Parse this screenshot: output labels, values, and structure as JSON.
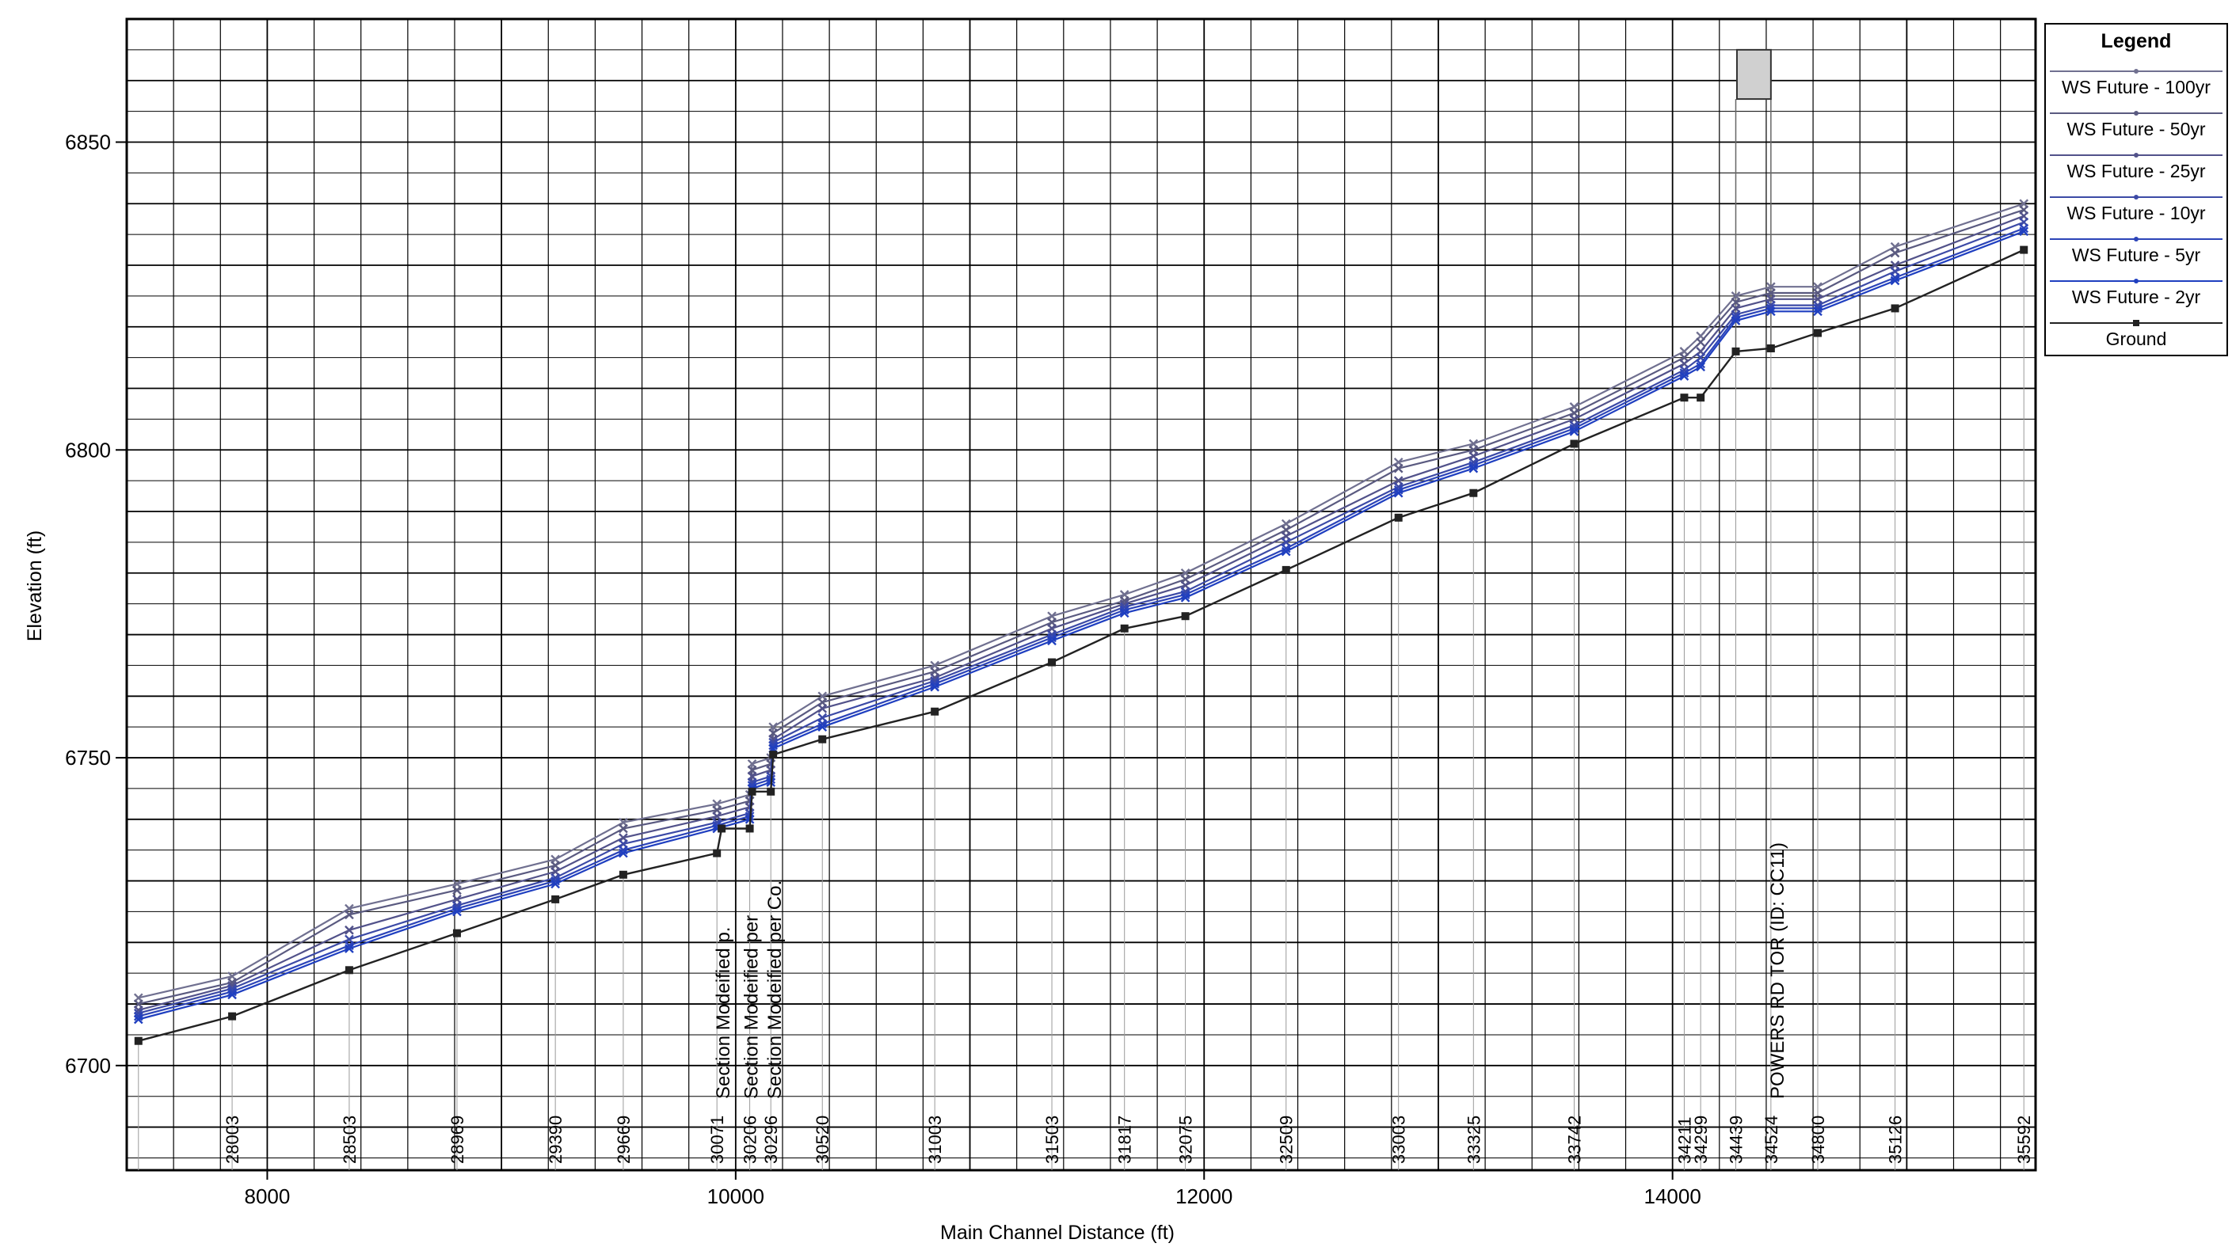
{
  "chart_data": {
    "type": "line",
    "xlabel": "Main Channel Distance (ft)",
    "ylabel": "Elevation (ft)",
    "xlim": [
      7400,
      15550
    ],
    "ylim": [
      6683,
      6870
    ],
    "x_ticks": [
      8000,
      10000,
      12000,
      14000
    ],
    "y_ticks": [
      6700,
      6750,
      6800,
      6850
    ],
    "grid": true,
    "legend_position": "right-outside",
    "legend_title": "Legend",
    "stations": [
      {
        "x": 7450,
        "label": ""
      },
      {
        "x": 7850,
        "label": "28003"
      },
      {
        "x": 8350,
        "label": "28503"
      },
      {
        "x": 8810,
        "label": "28969"
      },
      {
        "x": 9230,
        "label": "29390"
      },
      {
        "x": 9520,
        "label": "29669"
      },
      {
        "x": 9920,
        "label": "30071"
      },
      {
        "x": 10060,
        "label": "30206"
      },
      {
        "x": 10150,
        "label": "30296"
      },
      {
        "x": 10370,
        "label": "30520"
      },
      {
        "x": 10850,
        "label": "31003"
      },
      {
        "x": 11350,
        "label": "31503"
      },
      {
        "x": 11660,
        "label": "31817"
      },
      {
        "x": 11920,
        "label": "32075"
      },
      {
        "x": 12350,
        "label": "32509"
      },
      {
        "x": 12830,
        "label": "33003"
      },
      {
        "x": 13150,
        "label": "33325"
      },
      {
        "x": 13580,
        "label": "33742"
      },
      {
        "x": 14050,
        "label": "34211"
      },
      {
        "x": 14120,
        "label": "34299"
      },
      {
        "x": 14270,
        "label": "34439"
      },
      {
        "x": 14420,
        "label": "34524"
      },
      {
        "x": 14620,
        "label": "34800"
      },
      {
        "x": 14950,
        "label": "35126"
      },
      {
        "x": 15500,
        "label": "35592"
      }
    ],
    "annotations": [
      {
        "x": 9940,
        "text": "Section Modeified p."
      },
      {
        "x": 10060,
        "text": "Section Modeified per"
      },
      {
        "x": 10160,
        "text": "Section Modeified per Co."
      },
      {
        "x": 14440,
        "text": "POWERS RD TOR (ID: CC11)"
      }
    ],
    "series": [
      {
        "name": "WS Future - 100yr",
        "color": "#707090",
        "x": [
          7450,
          7850,
          8350,
          8810,
          9230,
          9520,
          9920,
          10060,
          10070,
          10150,
          10160,
          10370,
          10850,
          11350,
          11660,
          11920,
          12350,
          12830,
          13150,
          13580,
          14050,
          14120,
          14270,
          14420,
          14620,
          14950,
          15500
        ],
        "y": [
          6711,
          6714.5,
          6725.5,
          6729.5,
          6733.5,
          6739.5,
          6742.5,
          6744,
          6749,
          6750,
          6755,
          6760,
          6765,
          6773,
          6776.5,
          6780,
          6788,
          6798,
          6801,
          6807,
          6816,
          6818.5,
          6825,
          6826.5,
          6826.5,
          6833,
          6840
        ]
      },
      {
        "name": "WS Future - 50yr",
        "color": "#5a5a80",
        "x": [
          7450,
          7850,
          8350,
          8810,
          9230,
          9520,
          9920,
          10060,
          10070,
          10150,
          10160,
          10370,
          10850,
          11350,
          11660,
          11920,
          12350,
          12830,
          13150,
          13580,
          14050,
          14120,
          14270,
          14420,
          14620,
          14950,
          15500
        ],
        "y": [
          6710,
          6713.5,
          6724.5,
          6728.5,
          6732.5,
          6738.5,
          6741.5,
          6743,
          6748,
          6749,
          6754,
          6759,
          6764,
          6772,
          6775.5,
          6779,
          6787,
          6797,
          6800,
          6806,
          6815,
          6817.5,
          6824,
          6825.5,
          6825.5,
          6832,
          6839
        ]
      },
      {
        "name": "WS Future - 25yr",
        "color": "#52528a",
        "x": [
          7450,
          7850,
          8350,
          8810,
          9230,
          9520,
          9920,
          10060,
          10070,
          10150,
          10160,
          10370,
          10850,
          11350,
          11660,
          11920,
          12350,
          12830,
          13150,
          13580,
          14050,
          14120,
          14270,
          14420,
          14620,
          14950,
          15500
        ],
        "y": [
          6709,
          6713,
          6722,
          6727,
          6731.5,
          6737,
          6740.5,
          6742,
          6747,
          6748,
          6753,
          6758,
          6763,
          6771,
          6775,
          6778,
          6786,
          6795,
          6799,
          6805,
          6814,
          6816,
          6823,
          6824.5,
          6824.5,
          6830,
          6838
        ]
      },
      {
        "name": "WS Future - 10yr",
        "color": "#3c4aa6",
        "x": [
          7450,
          7850,
          8350,
          8810,
          9230,
          9520,
          9920,
          10060,
          10070,
          10150,
          10160,
          10370,
          10850,
          11350,
          11660,
          11920,
          12350,
          12830,
          13150,
          13580,
          14050,
          14120,
          14270,
          14420,
          14620,
          14950,
          15500
        ],
        "y": [
          6708.5,
          6712.5,
          6720.5,
          6726,
          6730.5,
          6736,
          6739.5,
          6741,
          6746,
          6747,
          6752.5,
          6756.5,
          6762.5,
          6770,
          6774.5,
          6777,
          6785,
          6794,
          6798,
          6804,
          6813,
          6815,
          6822,
          6823.5,
          6823.5,
          6829,
          6837
        ]
      },
      {
        "name": "WS Future - 5yr",
        "color": "#2c44b8",
        "x": [
          7450,
          7850,
          8350,
          8810,
          9230,
          9520,
          9920,
          10060,
          10070,
          10150,
          10160,
          10370,
          10850,
          11350,
          11660,
          11920,
          12350,
          12830,
          13150,
          13580,
          14050,
          14120,
          14270,
          14420,
          14620,
          14950,
          15500
        ],
        "y": [
          6708,
          6712,
          6719.5,
          6725.5,
          6730,
          6735,
          6739,
          6740.5,
          6745.5,
          6746.5,
          6752,
          6755.5,
          6762,
          6769.5,
          6774,
          6776.5,
          6784,
          6793.5,
          6797.5,
          6803.5,
          6812.5,
          6814,
          6821.5,
          6823,
          6823,
          6828,
          6836
        ]
      },
      {
        "name": "WS Future - 2yr",
        "color": "#1f3fc0",
        "x": [
          7450,
          7850,
          8350,
          8810,
          9230,
          9520,
          9920,
          10060,
          10070,
          10150,
          10160,
          10370,
          10850,
          11350,
          11660,
          11920,
          12350,
          12830,
          13150,
          13580,
          14050,
          14120,
          14270,
          14420,
          14620,
          14950,
          15500
        ],
        "y": [
          6707.5,
          6711.5,
          6719,
          6725,
          6729.5,
          6734.5,
          6738.5,
          6740,
          6745,
          6746,
          6751.5,
          6755,
          6761.5,
          6769,
          6773.5,
          6776,
          6783.5,
          6793,
          6797,
          6803,
          6812,
          6813.5,
          6821,
          6822.5,
          6822.5,
          6827.5,
          6835.5
        ]
      },
      {
        "name": "Ground",
        "color": "#222222",
        "x": [
          7450,
          7850,
          8350,
          8810,
          9230,
          9520,
          9920,
          9940,
          10060,
          10070,
          10150,
          10160,
          10370,
          10850,
          11350,
          11660,
          11920,
          12350,
          12830,
          13150,
          13580,
          14050,
          14120,
          14270,
          14420,
          14620,
          14950,
          15500
        ],
        "y": [
          6704,
          6708,
          6715.5,
          6721.5,
          6727,
          6731,
          6734.5,
          6738.5,
          6738.5,
          6744.5,
          6744.5,
          6750.5,
          6753,
          6757.5,
          6765.5,
          6771,
          6773,
          6780.5,
          6789,
          6793,
          6801,
          6808.5,
          6808.5,
          6816,
          6816.5,
          6819,
          6823,
          6832.5
        ]
      }
    ]
  }
}
